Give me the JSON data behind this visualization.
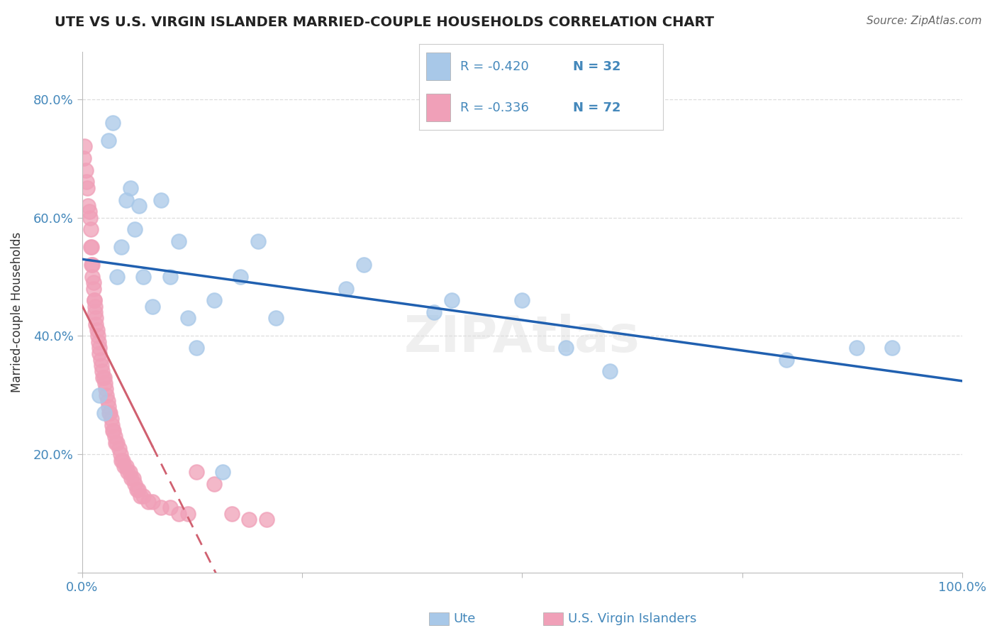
{
  "title": "UTE VS U.S. VIRGIN ISLANDER MARRIED-COUPLE HOUSEHOLDS CORRELATION CHART",
  "source": "Source: ZipAtlas.com",
  "ylabel": "Married-couple Households",
  "legend_ute_label": "Ute",
  "legend_usvi_label": "U.S. Virgin Islanders",
  "ute_R": -0.42,
  "ute_N": 32,
  "usvi_R": -0.336,
  "usvi_N": 72,
  "ute_color": "#A8C8E8",
  "usvi_color": "#F0A0B8",
  "ute_line_color": "#2060B0",
  "usvi_line_color": "#D06070",
  "title_color": "#222222",
  "axis_color": "#4488BB",
  "grid_color": "#DDDDDD",
  "bg_color": "#FFFFFF",
  "xlim": [
    0.0,
    1.0
  ],
  "ylim": [
    0.0,
    0.88
  ],
  "ute_x": [
    0.02,
    0.025,
    0.03,
    0.035,
    0.04,
    0.045,
    0.05,
    0.055,
    0.06,
    0.065,
    0.07,
    0.08,
    0.09,
    0.1,
    0.11,
    0.12,
    0.13,
    0.15,
    0.16,
    0.18,
    0.2,
    0.22,
    0.3,
    0.32,
    0.4,
    0.42,
    0.5,
    0.55,
    0.6,
    0.8,
    0.88,
    0.92
  ],
  "ute_y": [
    0.3,
    0.27,
    0.73,
    0.76,
    0.5,
    0.55,
    0.63,
    0.65,
    0.58,
    0.62,
    0.5,
    0.45,
    0.63,
    0.5,
    0.56,
    0.43,
    0.38,
    0.46,
    0.17,
    0.5,
    0.56,
    0.43,
    0.48,
    0.52,
    0.44,
    0.46,
    0.46,
    0.38,
    0.34,
    0.36,
    0.38,
    0.38
  ],
  "usvi_x": [
    0.002,
    0.003,
    0.004,
    0.005,
    0.006,
    0.007,
    0.008,
    0.009,
    0.01,
    0.01,
    0.011,
    0.011,
    0.012,
    0.012,
    0.013,
    0.013,
    0.014,
    0.014,
    0.015,
    0.015,
    0.016,
    0.016,
    0.017,
    0.018,
    0.019,
    0.02,
    0.02,
    0.021,
    0.022,
    0.023,
    0.024,
    0.025,
    0.026,
    0.027,
    0.028,
    0.029,
    0.03,
    0.031,
    0.032,
    0.033,
    0.034,
    0.035,
    0.036,
    0.037,
    0.038,
    0.04,
    0.042,
    0.044,
    0.045,
    0.046,
    0.048,
    0.05,
    0.052,
    0.054,
    0.056,
    0.058,
    0.06,
    0.062,
    0.064,
    0.066,
    0.07,
    0.075,
    0.08,
    0.09,
    0.1,
    0.11,
    0.12,
    0.13,
    0.15,
    0.17,
    0.19,
    0.21
  ],
  "usvi_y": [
    0.7,
    0.72,
    0.68,
    0.66,
    0.65,
    0.62,
    0.61,
    0.6,
    0.58,
    0.55,
    0.55,
    0.52,
    0.52,
    0.5,
    0.49,
    0.48,
    0.46,
    0.46,
    0.45,
    0.44,
    0.43,
    0.42,
    0.41,
    0.4,
    0.39,
    0.38,
    0.37,
    0.36,
    0.35,
    0.34,
    0.33,
    0.33,
    0.32,
    0.31,
    0.3,
    0.29,
    0.28,
    0.27,
    0.27,
    0.26,
    0.25,
    0.24,
    0.24,
    0.23,
    0.22,
    0.22,
    0.21,
    0.2,
    0.19,
    0.19,
    0.18,
    0.18,
    0.17,
    0.17,
    0.16,
    0.16,
    0.15,
    0.14,
    0.14,
    0.13,
    0.13,
    0.12,
    0.12,
    0.11,
    0.11,
    0.1,
    0.1,
    0.17,
    0.15,
    0.1,
    0.09,
    0.09
  ]
}
